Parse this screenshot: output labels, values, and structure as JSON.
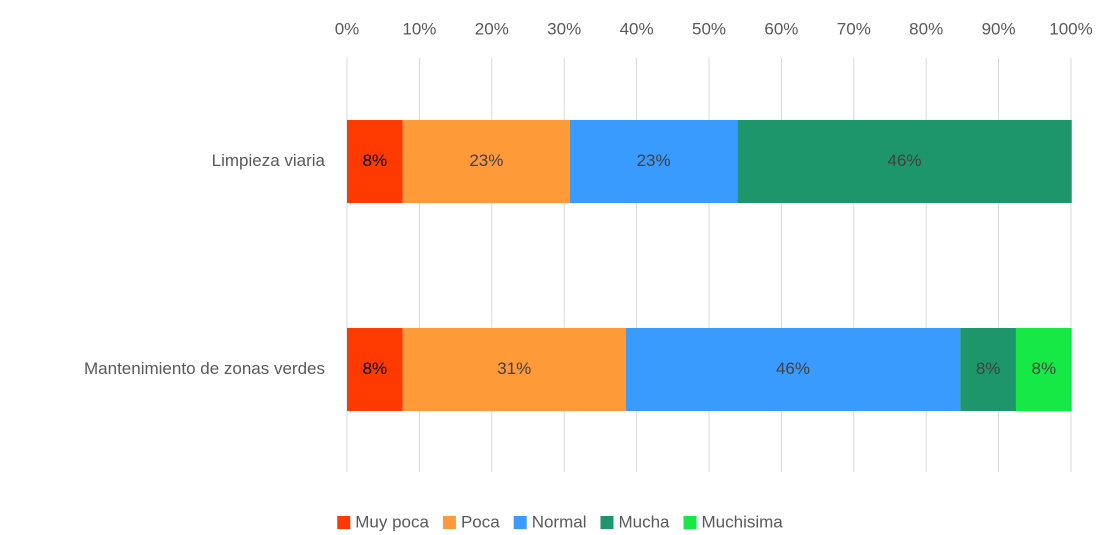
{
  "chart_data": {
    "type": "stacked_bar_horizontal",
    "categories": [
      "Limpieza viaria",
      "Mantenimiento de zonas verdes"
    ],
    "series": [
      {
        "name": "Muy poca",
        "color": "#ff3a00",
        "values": [
          7.7,
          7.7
        ],
        "value_labels": [
          "8%",
          "8%"
        ]
      },
      {
        "name": "Poca",
        "color": "#ff9a38",
        "values": [
          23.1,
          30.8
        ],
        "value_labels": [
          "23%",
          "31%"
        ]
      },
      {
        "name": "Normal",
        "color": "#3a9bff",
        "values": [
          23.1,
          46.2
        ],
        "value_labels": [
          "23%",
          "46%"
        ]
      },
      {
        "name": "Mucha",
        "color": "#1e966c",
        "values": [
          46.2,
          7.7
        ],
        "value_labels": [
          "46%",
          "8%"
        ]
      },
      {
        "name": "Muchisima",
        "color": "#16e846",
        "values": [
          0,
          7.7
        ],
        "value_labels": [
          null,
          "8%"
        ]
      }
    ],
    "xlim": [
      0,
      100
    ],
    "xticks": [
      {
        "value": 0,
        "label": "0%"
      },
      {
        "value": 10,
        "label": "10%"
      },
      {
        "value": 20,
        "label": "20%"
      },
      {
        "value": 30,
        "label": "30%"
      },
      {
        "value": 40,
        "label": "40%"
      },
      {
        "value": 50,
        "label": "50%"
      },
      {
        "value": 60,
        "label": "60%"
      },
      {
        "value": 70,
        "label": "70%"
      },
      {
        "value": 80,
        "label": "80%"
      },
      {
        "value": 90,
        "label": "90%"
      },
      {
        "value": 100,
        "label": "100%"
      }
    ],
    "grid": true,
    "legend": "bottom"
  }
}
